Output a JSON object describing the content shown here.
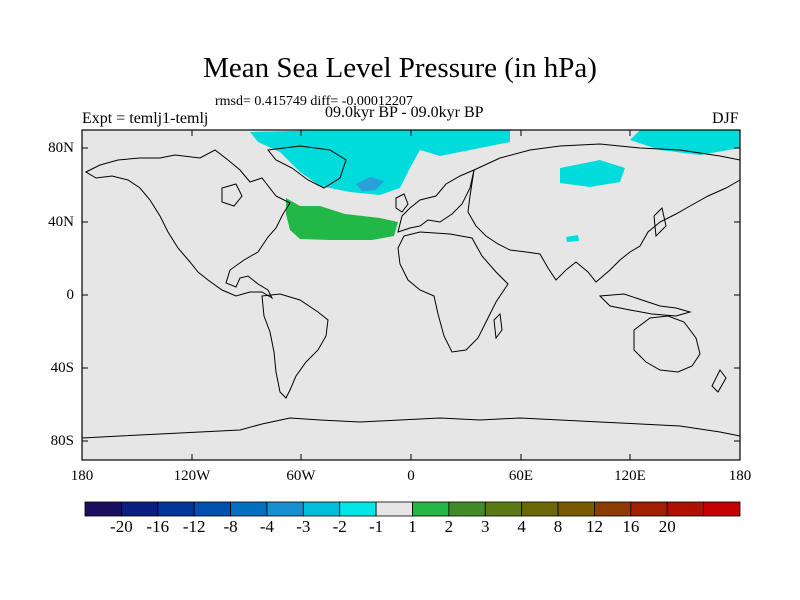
{
  "title": "Mean Sea Level Pressure (in hPa)",
  "stats": "rmsd= 0.415749 diff= -0.00012207",
  "experiment": "Expt = temlj1-temlj",
  "period": "09.0kyr BP - 09.0kyr BP",
  "season": "DJF",
  "lat_labels": [
    "80N",
    "40N",
    "0",
    "40S",
    "80S"
  ],
  "lon_labels": [
    "180",
    "120W",
    "60W",
    "0",
    "60E",
    "120E",
    "180"
  ],
  "colors": {
    "background_field": "#e6e6e6",
    "positive_anomaly": "#22b845",
    "negative_light": "#00dcdc",
    "negative_mid": "#2aa0d8",
    "coastline": "#000000"
  },
  "colorbar": {
    "colors": [
      "#1a0f5e",
      "#0c1f80",
      "#00369c",
      "#0050b0",
      "#0071c0",
      "#1690d0",
      "#00bfdc",
      "#00e6e6",
      "#e6e6e6",
      "#22b845",
      "#428c28",
      "#5a7a14",
      "#6b6808",
      "#7a5a00",
      "#8c3c00",
      "#a02000",
      "#b01000",
      "#c40000"
    ],
    "labels": [
      "-20",
      "-16",
      "-12",
      "-8",
      "-4",
      "-3",
      "-2",
      "-1",
      "1",
      "2",
      "3",
      "4",
      "8",
      "12",
      "16",
      "20"
    ]
  }
}
